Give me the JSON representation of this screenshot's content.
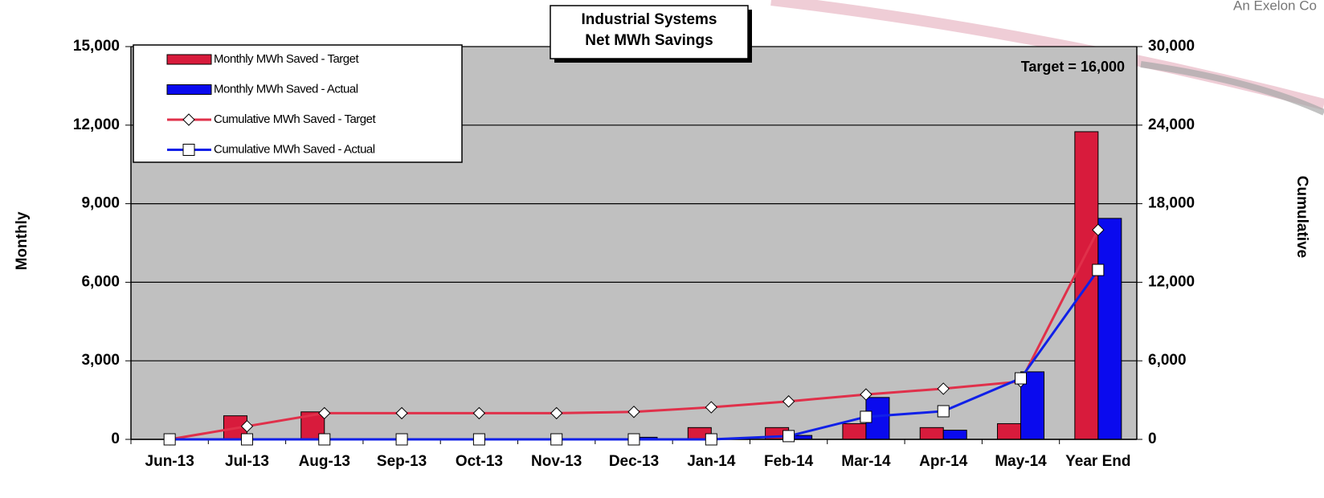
{
  "chart_data": {
    "type": "bar",
    "title": [
      "Industrial Systems",
      "Net MWh Savings"
    ],
    "annotation": "Target = 16,000",
    "logo_text": "An Exelon Co",
    "ylabel": "Monthly",
    "y2label": "Cumulative",
    "categories": [
      "Jun-13",
      "Jul-13",
      "Aug-13",
      "Sep-13",
      "Oct-13",
      "Nov-13",
      "Dec-13",
      "Jan-14",
      "Feb-14",
      "Mar-14",
      "Apr-14",
      "May-14",
      "Year End"
    ],
    "series": [
      {
        "name": "Monthly MWh Saved - Target",
        "type": "bar",
        "color": "#d81b3c",
        "values": [
          0,
          900,
          1050,
          0,
          0,
          0,
          0,
          450,
          450,
          600,
          450,
          600,
          11750
        ]
      },
      {
        "name": "Monthly MWh Saved - Actual",
        "type": "bar",
        "color": "#0a0aee",
        "values": [
          0,
          0,
          0,
          0,
          0,
          0,
          80,
          0,
          150,
          1600,
          350,
          2580,
          8440
        ]
      },
      {
        "name": "Cumulative MWh Saved - Target",
        "type": "line",
        "axis": "y2",
        "marker": "diamond",
        "color": "#e0304a",
        "values": [
          0,
          1000,
          2000,
          2000,
          2000,
          2000,
          2100,
          2450,
          2900,
          3430,
          3870,
          4420,
          16000
        ]
      },
      {
        "name": "Cumulative MWh Saved - Actual",
        "type": "line",
        "axis": "y2",
        "marker": "square",
        "color": "#1020e8",
        "values": [
          0,
          0,
          0,
          0,
          0,
          0,
          0,
          0,
          250,
          1720,
          2150,
          4660,
          12940
        ]
      }
    ],
    "ylim": [
      0,
      15000
    ],
    "yticks": [
      0,
      {
        "value": 3000,
        "label": "3,000"
      },
      {
        "value": 6000,
        "label": "6,000"
      },
      {
        "value": 9000,
        "label": "9,000"
      },
      {
        "value": 12000,
        "label": "12,000"
      },
      {
        "value": 15000,
        "label": "15,000"
      }
    ],
    "y2lim": [
      0,
      30000
    ],
    "y2ticks": [
      0,
      {
        "value": 6000,
        "label": "6,000"
      },
      {
        "value": 12000,
        "label": "12,000"
      },
      {
        "value": 18000,
        "label": "18,000"
      },
      {
        "value": 24000,
        "label": "24,000"
      },
      {
        "value": 30000,
        "label": "30,000"
      }
    ],
    "grid": true,
    "legend": "upper left",
    "background": "#c0c0c0"
  }
}
